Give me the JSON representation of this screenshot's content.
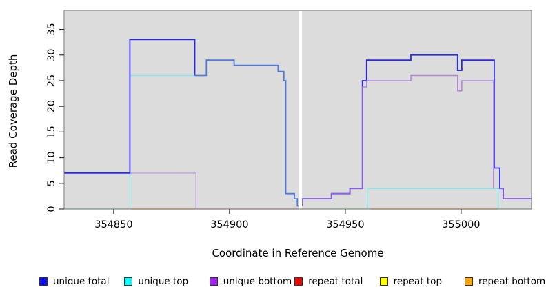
{
  "figure": {
    "background": "#FFFFFF",
    "plot_background": "#DCDCDC",
    "plot_border_color": "#777777",
    "tick_color": "#333333"
  },
  "chart_data": {
    "type": "line",
    "step": true,
    "title": "",
    "xlabel": "Coordinate in Reference Genome",
    "ylabel": "Read Coverage Depth",
    "xlim": [
      354828.6,
      355030.4
    ],
    "ylim": [
      0,
      38.7
    ],
    "xticks": [
      354850,
      354900,
      354950,
      355000
    ],
    "yticks": [
      0,
      5,
      10,
      15,
      20,
      25,
      30,
      35
    ],
    "grid": false,
    "legend_position": "bottom",
    "gap_band": {
      "x_from": 354929.8,
      "x_to": 354931.3,
      "color": "#FFFFFF"
    },
    "series": [
      {
        "name": "baseline-left-green",
        "color": "#9FD89F",
        "width": 1.3,
        "opacity": 1,
        "points": [
          [
            354828.6,
            0
          ],
          [
            354857,
            0
          ]
        ]
      },
      {
        "name": "baseline-left-orange",
        "color": "#FF9E2C",
        "width": 1.4,
        "opacity": 1,
        "points": [
          [
            354857,
            0
          ],
          [
            354885.5,
            0
          ]
        ]
      },
      {
        "name": "repeat-total-baseline",
        "color": "#E26B8E",
        "width": 1.3,
        "opacity": 1,
        "points": [
          [
            354885.5,
            0
          ],
          [
            354929.8,
            0
          ]
        ]
      },
      {
        "name": "baseline-right-green-1",
        "color": "#82CA82",
        "width": 1.3,
        "opacity": 1,
        "points": [
          [
            354931.3,
            0
          ],
          [
            354961,
            0
          ]
        ]
      },
      {
        "name": "baseline-right-orange",
        "color": "#FF9E2C",
        "width": 1.4,
        "opacity": 1,
        "points": [
          [
            354961,
            0
          ],
          [
            355016,
            0
          ]
        ]
      },
      {
        "name": "baseline-right-green-2",
        "color": "#82CA82",
        "width": 1.3,
        "opacity": 1,
        "points": [
          [
            355016,
            0
          ],
          [
            355030.4,
            0
          ]
        ]
      },
      {
        "name": "unique-bottom-left",
        "color": "#C39BE4",
        "width": 1.4,
        "opacity": 1,
        "points": [
          [
            354828.6,
            7
          ],
          [
            354885.5,
            7
          ],
          [
            354885.5,
            0
          ]
        ]
      },
      {
        "name": "unique-top-left",
        "color": "#7DE8F2",
        "width": 1.4,
        "opacity": 1,
        "points": [
          [
            354857,
            0
          ],
          [
            354857,
            26
          ],
          [
            354885,
            26
          ]
        ]
      },
      {
        "name": "unique-total-left",
        "color": "#2B2BEF",
        "width": 1.8,
        "opacity": 1,
        "points": [
          [
            354828.6,
            7
          ],
          [
            354857,
            7
          ],
          [
            354857,
            33
          ],
          [
            354885,
            33
          ],
          [
            354885,
            26
          ]
        ]
      },
      {
        "name": "unique-total-left-tail",
        "color": "#4B7BE5",
        "width": 1.8,
        "opacity": 1,
        "points": [
          [
            354885,
            26
          ],
          [
            354890,
            26
          ],
          [
            354890,
            29
          ],
          [
            354902,
            29
          ],
          [
            354902,
            28
          ],
          [
            354921,
            28
          ],
          [
            354921,
            26.8
          ],
          [
            354923.5,
            26.8
          ],
          [
            354923.5,
            25
          ],
          [
            354924.3,
            25
          ],
          [
            354924.3,
            3
          ],
          [
            354928,
            3
          ],
          [
            354928,
            2
          ],
          [
            354929.3,
            2
          ],
          [
            354929.3,
            0.6
          ],
          [
            354930.5,
            0.6
          ]
        ]
      },
      {
        "name": "unique-total-right",
        "color": "#2B2BEF",
        "width": 1.8,
        "opacity": 1,
        "points": [
          [
            354931.3,
            0.6
          ],
          [
            354931.3,
            2
          ],
          [
            354944,
            2
          ],
          [
            354944,
            3
          ],
          [
            354952,
            3
          ],
          [
            354952,
            4
          ],
          [
            354957.4,
            4
          ],
          [
            354957.4,
            25
          ],
          [
            354959.2,
            25
          ],
          [
            354959.2,
            29
          ],
          [
            354978.3,
            29
          ],
          [
            354978.3,
            30
          ],
          [
            354998.5,
            30
          ],
          [
            354998.5,
            27
          ],
          [
            355000.3,
            27
          ],
          [
            355000.3,
            29
          ],
          [
            355014.3,
            29
          ],
          [
            355014.3,
            8
          ],
          [
            355016.7,
            8
          ],
          [
            355016.7,
            4
          ],
          [
            355018.2,
            4
          ],
          [
            355018.2,
            2
          ],
          [
            355030.4,
            2
          ]
        ]
      },
      {
        "name": "unique-bottom-right",
        "color": "#A76BE0",
        "width": 1.5,
        "opacity": 0.8,
        "points": [
          [
            354931.3,
            0.6
          ],
          [
            354931.3,
            2
          ],
          [
            354944,
            2
          ],
          [
            354944,
            3
          ],
          [
            354952,
            3
          ],
          [
            354952,
            4
          ],
          [
            354957.4,
            4
          ],
          [
            354957.4,
            23.8
          ],
          [
            354959.2,
            23.8
          ],
          [
            354959.2,
            25
          ],
          [
            354978.3,
            25
          ],
          [
            354978.3,
            26
          ],
          [
            354998.5,
            26
          ],
          [
            354998.5,
            23
          ],
          [
            355000.3,
            23
          ],
          [
            355000.3,
            25
          ],
          [
            355014,
            25
          ],
          [
            355014,
            4
          ],
          [
            355018.2,
            4
          ],
          [
            355018.2,
            2
          ],
          [
            355030.4,
            2
          ]
        ]
      },
      {
        "name": "unique-top-right",
        "color": "#7DE8F2",
        "width": 1.4,
        "opacity": 1,
        "points": [
          [
            354959.5,
            0
          ],
          [
            354959.5,
            4
          ],
          [
            355016,
            4
          ],
          [
            355016,
            0
          ]
        ]
      }
    ]
  },
  "legend": {
    "items": [
      {
        "label": "unique total",
        "color": "#0D0DF2"
      },
      {
        "label": "unique top",
        "color": "#00FFFF"
      },
      {
        "label": "unique bottom",
        "color": "#A020F0"
      },
      {
        "label": "repeat total",
        "color": "#E10600"
      },
      {
        "label": "repeat top",
        "color": "#FFFF00"
      },
      {
        "label": "repeat bottom",
        "color": "#FFA500"
      }
    ]
  }
}
